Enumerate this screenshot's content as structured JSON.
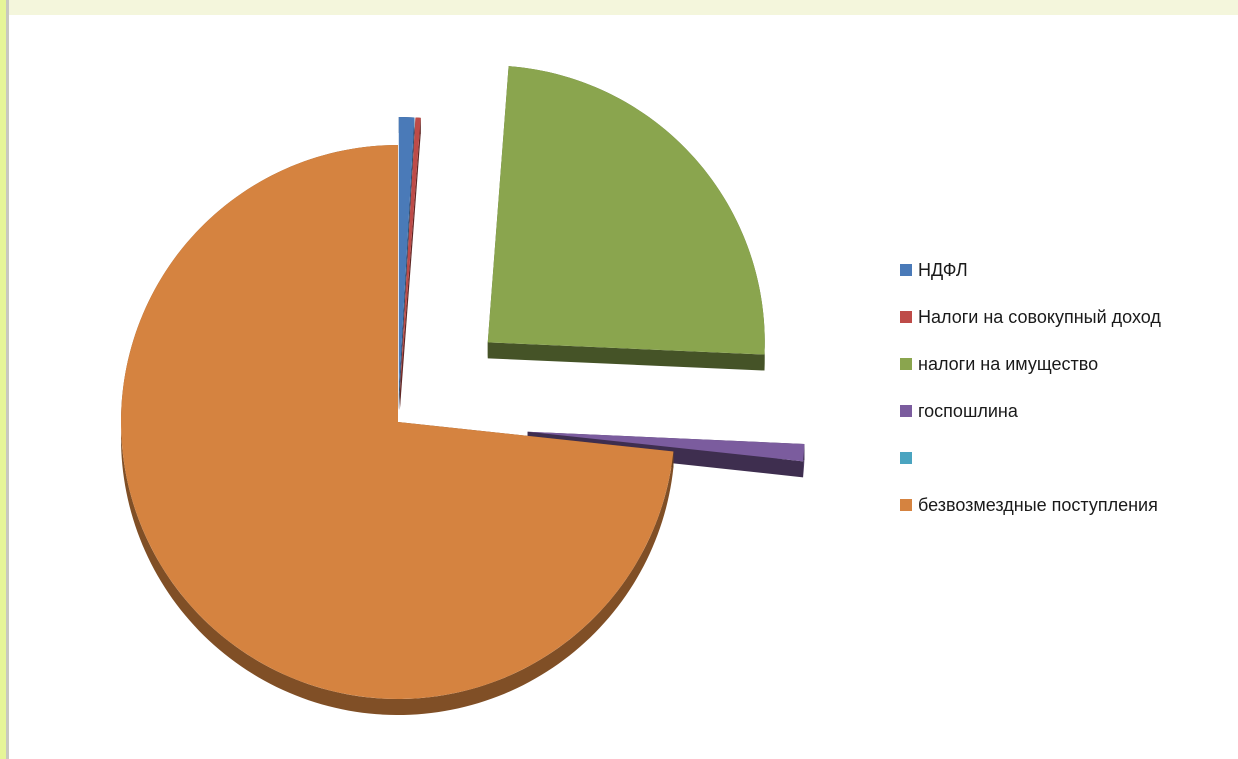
{
  "chart_data": {
    "type": "pie",
    "style": "3d-exploded",
    "title": "",
    "categories": [
      "НДФЛ",
      "Налоги на совокупный доход",
      "налоги на имущество",
      "госпошлина",
      "",
      "безвозмездные поступления"
    ],
    "values": [
      0.9,
      0.3,
      24.5,
      1.0,
      0.0,
      73.3
    ],
    "unit": "percent",
    "colors": [
      "#4a7ab8",
      "#be4b48",
      "#8aa54e",
      "#7b5c9e",
      "#4aa4c0",
      "#d58340"
    ],
    "legend": {
      "position": "right",
      "entries": [
        {
          "label": "НДФЛ",
          "color": "#4a7ab8"
        },
        {
          "label": "Налоги на совокупный доход",
          "color": "#be4b48"
        },
        {
          "label": "налоги на имущество",
          "color": "#8aa54e"
        },
        {
          "label": "госпошлина",
          "color": "#7b5c9e"
        },
        {
          "label": "",
          "color": "#4aa4c0"
        },
        {
          "label": "безвозмездные поступления",
          "color": "#d58340"
        }
      ]
    }
  }
}
